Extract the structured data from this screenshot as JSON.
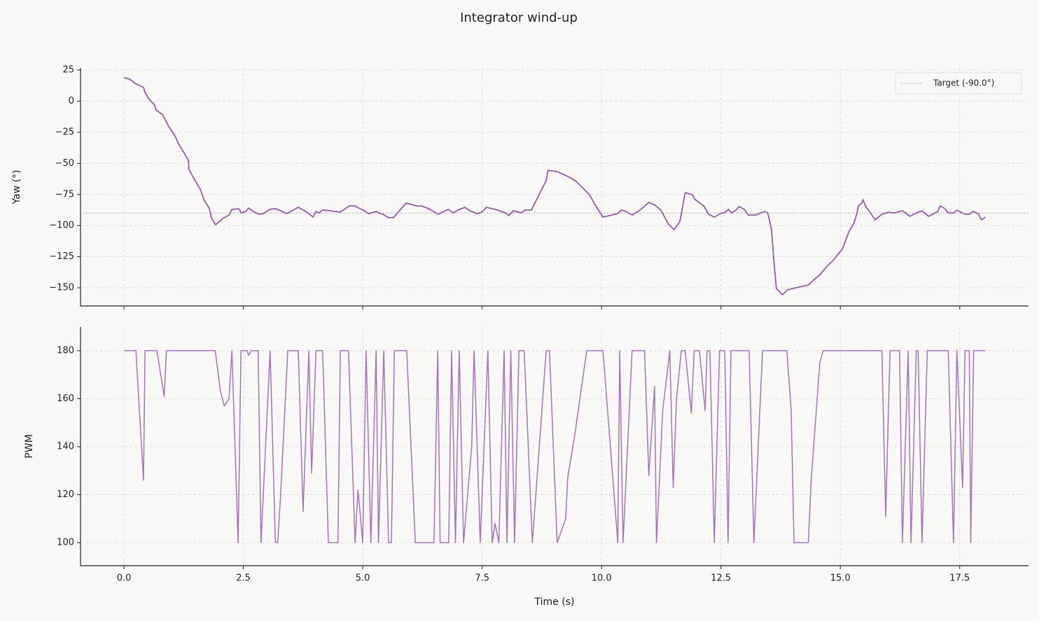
{
  "title": "Integrator wind-up",
  "chart_data": [
    {
      "type": "line",
      "ylabel": "Yaw (°)",
      "grid": true,
      "legend": "upper right",
      "xlim": [
        -0.91,
        18.94
      ],
      "ylim": [
        -164.6,
        26.7
      ],
      "xticks": [
        {
          "value": 0,
          "label": "0.0"
        },
        2.5,
        {
          "value": 5,
          "label": "5.0"
        },
        7.5,
        {
          "value": 10,
          "label": "10.0"
        },
        12.5,
        {
          "value": 15,
          "label": "15.0"
        },
        17.5
      ],
      "yticks": [
        25,
        0,
        {
          "value": -25,
          "label": "−25"
        },
        {
          "value": -50,
          "label": "−50"
        },
        {
          "value": -75,
          "label": "−75"
        },
        {
          "value": -100,
          "label": "−100"
        },
        {
          "value": -125,
          "label": "−125"
        },
        {
          "value": -150,
          "label": "−150"
        }
      ],
      "hlines": [
        {
          "y": -90,
          "name": "Target (-90.0°)",
          "color": "#aaaaaa"
        }
      ],
      "x": [
        0,
        0.12,
        0.23,
        0.41,
        0.44,
        0.53,
        0.64,
        0.67,
        0.81,
        0.94,
        1.06,
        1.14,
        1.35,
        1.36,
        1.61,
        1.67,
        1.79,
        1.83,
        1.92,
        2.07,
        2.2,
        2.26,
        2.4,
        2.46,
        2.55,
        2.61,
        2.71,
        2.83,
        2.92,
        3.05,
        3.17,
        3.28,
        3.41,
        3.65,
        3.81,
        3.96,
        4.02,
        4.09,
        4.16,
        4.32,
        4.53,
        4.72,
        4.84,
        4.91,
        5.01,
        5.12,
        5.28,
        5.45,
        5.54,
        5.64,
        5.91,
        6.13,
        6.23,
        6.38,
        6.58,
        6.79,
        6.9,
        6.99,
        7.14,
        7.24,
        7.39,
        7.49,
        7.59,
        7.78,
        7.99,
        8.06,
        8.15,
        8.21,
        8.32,
        8.4,
        8.53,
        8.84,
        8.88,
        9.06,
        9.2,
        9.35,
        9.47,
        9.76,
        9.85,
        10.03,
        10.34,
        10.41,
        10.48,
        10.64,
        10.79,
        10.99,
        11.12,
        11.24,
        11.4,
        11.52,
        11.64,
        11.75,
        11.9,
        11.96,
        12.14,
        12.24,
        12.36,
        12.49,
        12.59,
        12.66,
        12.72,
        12.8,
        12.88,
        12.99,
        13.07,
        13.23,
        13.41,
        13.48,
        13.56,
        13.6,
        13.66,
        13.79,
        13.89,
        14,
        14.33,
        14.44,
        14.58,
        14.71,
        14.86,
        14.95,
        15.04,
        15.18,
        15.29,
        15.35,
        15.38,
        15.45,
        15.47,
        15.54,
        15.62,
        15.73,
        15.87,
        16.02,
        16.12,
        16.3,
        16.46,
        16.59,
        16.71,
        16.85,
        17.04,
        17.09,
        17.19,
        17.26,
        17.37,
        17.44,
        17.52,
        17.61,
        17.71,
        17.77,
        17.89,
        17.95,
        18.04
      ],
      "series": [
        {
          "color": "#9b59b6",
          "values": [
            18.8,
            17.7,
            14.3,
            11,
            7,
            1.4,
            -3,
            -7,
            -11,
            -20.6,
            -27.3,
            -34,
            -47.6,
            -55,
            -71.8,
            -79,
            -86.4,
            -93.7,
            -99.4,
            -94.3,
            -91.5,
            -87,
            -86.4,
            -89.8,
            -88.7,
            -85.9,
            -88.7,
            -90.9,
            -90.4,
            -87,
            -86.4,
            -88.1,
            -90.4,
            -85.3,
            -88.7,
            -93.2,
            -88.7,
            -89.8,
            -87.5,
            -88.1,
            -89.2,
            -84.2,
            -84.2,
            -85.9,
            -87.5,
            -90.4,
            -88.7,
            -91.5,
            -93.7,
            -93.7,
            -81.9,
            -84.2,
            -84.2,
            -86.4,
            -90.9,
            -87,
            -89.8,
            -87.5,
            -85.3,
            -88.1,
            -90.4,
            -89.2,
            -85.3,
            -87,
            -89.8,
            -92,
            -88.1,
            -88.7,
            -89.8,
            -87.5,
            -87.5,
            -63.9,
            -55.5,
            -56.6,
            -58.8,
            -61.7,
            -64.5,
            -75.7,
            -82.5,
            -93.2,
            -90.4,
            -87.5,
            -88.1,
            -91.5,
            -88.1,
            -81.3,
            -83.6,
            -87.5,
            -98.8,
            -103.3,
            -96.6,
            -73.5,
            -75.2,
            -79.1,
            -84.2,
            -90.9,
            -93.2,
            -90.4,
            -89.2,
            -87,
            -89.8,
            -88.1,
            -84.7,
            -87,
            -91.5,
            -91.5,
            -88.7,
            -89.8,
            -103.3,
            -124.7,
            -150.6,
            -155.6,
            -151.7,
            -150.6,
            -147.8,
            -143.8,
            -139.3,
            -133.1,
            -127.5,
            -123,
            -119.1,
            -105,
            -97.7,
            -89.8,
            -84.2,
            -81.9,
            -79.1,
            -85.3,
            -89.2,
            -95.4,
            -90.9,
            -89.2,
            -89.8,
            -88.1,
            -92.6,
            -89.8,
            -88.1,
            -92.6,
            -88.7,
            -84.2,
            -86.4,
            -89.8,
            -89.8,
            -87.5,
            -89.2,
            -90.9,
            -90.9,
            -88.7,
            -90.4,
            -95.4,
            -93.2
          ]
        }
      ]
    },
    {
      "type": "line",
      "xlabel": "Time (s)",
      "ylabel": "PWM",
      "grid": true,
      "xlim": [
        -0.91,
        18.94
      ],
      "ylim": [
        90.4,
        189.9
      ],
      "xticks": [
        {
          "value": 0,
          "label": "0.0"
        },
        2.5,
        {
          "value": 5,
          "label": "5.0"
        },
        7.5,
        {
          "value": 10,
          "label": "10.0"
        },
        12.5,
        {
          "value": 15,
          "label": "15.0"
        },
        17.5
      ],
      "yticks": [
        100,
        120,
        140,
        160,
        180
      ],
      "x": [
        0,
        0.25,
        0.41,
        0.44,
        0.69,
        0.84,
        0.89,
        1.91,
        2.02,
        2.1,
        2.2,
        2.26,
        2.39,
        2.45,
        2.58,
        2.61,
        2.67,
        2.81,
        2.87,
        3.06,
        3.17,
        3.22,
        3.28,
        3.43,
        3.65,
        3.75,
        3.87,
        3.93,
        4.02,
        4.16,
        4.28,
        4.48,
        4.53,
        4.7,
        4.84,
        4.9,
        5.0,
        5.07,
        5.17,
        5.28,
        5.33,
        5.44,
        5.54,
        5.6,
        5.66,
        5.92,
        6.1,
        6.49,
        6.57,
        6.62,
        6.8,
        6.86,
        6.94,
        7.02,
        7.11,
        7.28,
        7.33,
        7.46,
        7.62,
        7.71,
        7.77,
        7.85,
        7.96,
        8.02,
        8.1,
        8.18,
        8.27,
        8.38,
        8.55,
        8.66,
        8.84,
        8.91,
        9.07,
        9.25,
        9.29,
        9.44,
        9.69,
        10.03,
        10.34,
        10.38,
        10.45,
        10.64,
        10.9,
        10.99,
        11.11,
        11.15,
        11.28,
        11.43,
        11.5,
        11.57,
        11.67,
        11.75,
        11.88,
        11.94,
        12.05,
        12.17,
        12.21,
        12.27,
        12.36,
        12.47,
        12.58,
        12.65,
        12.71,
        13.09,
        13.19,
        13.37,
        13.88,
        13.97,
        14.03,
        14.33,
        14.39,
        14.57,
        14.64,
        15.87,
        15.95,
        16.04,
        16.24,
        16.3,
        16.42,
        16.48,
        16.59,
        16.63,
        16.71,
        16.82,
        17.26,
        17.37,
        17.44,
        17.56,
        17.61,
        17.7,
        17.73,
        17.79,
        18.04
      ],
      "series": [
        {
          "color": "#a971c4",
          "values": [
            180,
            180,
            126,
            180,
            180,
            161,
            180,
            180,
            163,
            157,
            160,
            180,
            100,
            180,
            180,
            178,
            180,
            180,
            100,
            180,
            100,
            100,
            120,
            180,
            180,
            113,
            180,
            129,
            180,
            180,
            100,
            100,
            180,
            180,
            100,
            122,
            100,
            180,
            100,
            180,
            100,
            180,
            100,
            100,
            180,
            180,
            100,
            100,
            180,
            100,
            100,
            180,
            100,
            180,
            100,
            140,
            180,
            100,
            180,
            100,
            108,
            100,
            180,
            100,
            180,
            100,
            180,
            180,
            100,
            130,
            180,
            180,
            100,
            110,
            127,
            145,
            180,
            180,
            100,
            180,
            100,
            180,
            180,
            128,
            165,
            100,
            155,
            180,
            123,
            160,
            180,
            180,
            154,
            180,
            180,
            155,
            180,
            180,
            100,
            180,
            180,
            100,
            180,
            180,
            100,
            180,
            180,
            155,
            100,
            100,
            126,
            175,
            180,
            180,
            111,
            180,
            180,
            100,
            180,
            100,
            180,
            180,
            100,
            180,
            180,
            100,
            180,
            123,
            180,
            180,
            100,
            180,
            180
          ]
        }
      ]
    }
  ]
}
